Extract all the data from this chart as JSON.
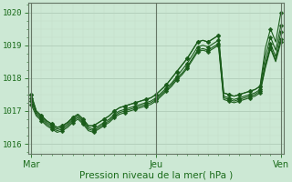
{
  "xlabel": "Pression niveau de la mer( hPa )",
  "bg_color": "#cce8d4",
  "grid_major_color": "#b0ccb8",
  "grid_minor_color": "#c4dcc8",
  "line_color": "#1a5c1a",
  "marker_color": "#1a5c1a",
  "xtick_labels": [
    "Mar",
    "Jeu",
    "Ven"
  ],
  "xtick_positions": [
    0,
    24,
    48
  ],
  "ytick_labels": [
    "1016",
    "1017",
    "1018",
    "1019",
    "1020"
  ],
  "ylim": [
    1015.7,
    1020.3
  ],
  "xlim": [
    -0.5,
    48.5
  ],
  "series": [
    [
      1017.5,
      1017.0,
      1016.85,
      1016.7,
      1016.6,
      1016.5,
      1016.55,
      1016.65,
      1016.8,
      1016.9,
      1016.75,
      1016.55,
      1016.55,
      1016.65,
      1016.75,
      1016.85,
      1017.0,
      1017.1,
      1017.15,
      1017.2,
      1017.25,
      1017.3,
      1017.35,
      1017.4,
      1017.5,
      1017.65,
      1017.8,
      1018.0,
      1018.2,
      1018.4,
      1018.6,
      1018.85,
      1019.1,
      1019.15,
      1019.1,
      1019.2,
      1019.3,
      1017.55,
      1017.5,
      1017.45,
      1017.5,
      1017.55,
      1017.6,
      1017.65,
      1017.75,
      1018.9,
      1019.5,
      1019.1,
      1020.0
    ],
    [
      1017.5,
      1017.0,
      1016.85,
      1016.7,
      1016.6,
      1016.5,
      1016.55,
      1016.65,
      1016.8,
      1016.9,
      1016.75,
      1016.55,
      1016.55,
      1016.65,
      1016.75,
      1016.85,
      1017.0,
      1017.1,
      1017.15,
      1017.2,
      1017.25,
      1017.3,
      1017.35,
      1017.4,
      1017.5,
      1017.65,
      1017.8,
      1018.0,
      1018.2,
      1018.4,
      1018.6,
      1018.85,
      1019.1,
      1019.15,
      1019.1,
      1019.2,
      1019.3,
      1017.55,
      1017.5,
      1017.45,
      1017.5,
      1017.55,
      1017.6,
      1017.65,
      1017.75,
      1018.65,
      1019.25,
      1018.85,
      1019.6
    ],
    [
      1017.4,
      1016.95,
      1016.8,
      1016.65,
      1016.55,
      1016.45,
      1016.5,
      1016.6,
      1016.75,
      1016.85,
      1016.7,
      1016.5,
      1016.45,
      1016.55,
      1016.65,
      1016.75,
      1016.9,
      1017.0,
      1017.05,
      1017.1,
      1017.15,
      1017.2,
      1017.25,
      1017.3,
      1017.4,
      1017.55,
      1017.7,
      1017.85,
      1018.05,
      1018.25,
      1018.45,
      1018.7,
      1018.95,
      1019.0,
      1018.95,
      1019.05,
      1019.15,
      1017.45,
      1017.4,
      1017.35,
      1017.4,
      1017.45,
      1017.5,
      1017.55,
      1017.65,
      1018.45,
      1019.05,
      1018.65,
      1019.4
    ],
    [
      1017.3,
      1016.9,
      1016.75,
      1016.6,
      1016.5,
      1016.4,
      1016.45,
      1016.55,
      1016.7,
      1016.8,
      1016.65,
      1016.45,
      1016.4,
      1016.5,
      1016.6,
      1016.7,
      1016.85,
      1016.95,
      1017.0,
      1017.05,
      1017.1,
      1017.15,
      1017.2,
      1017.25,
      1017.35,
      1017.5,
      1017.65,
      1017.8,
      1018.0,
      1018.15,
      1018.35,
      1018.6,
      1018.85,
      1018.9,
      1018.85,
      1018.95,
      1019.05,
      1017.4,
      1017.35,
      1017.3,
      1017.35,
      1017.4,
      1017.45,
      1017.5,
      1017.6,
      1018.35,
      1018.95,
      1018.55,
      1019.2
    ],
    [
      1017.2,
      1016.85,
      1016.7,
      1016.55,
      1016.45,
      1016.35,
      1016.4,
      1016.5,
      1016.65,
      1016.75,
      1016.6,
      1016.4,
      1016.35,
      1016.45,
      1016.55,
      1016.65,
      1016.8,
      1016.9,
      1016.95,
      1017.0,
      1017.05,
      1017.1,
      1017.15,
      1017.2,
      1017.3,
      1017.45,
      1017.6,
      1017.75,
      1017.95,
      1018.1,
      1018.3,
      1018.55,
      1018.8,
      1018.85,
      1018.8,
      1018.9,
      1019.0,
      1017.35,
      1017.3,
      1017.25,
      1017.3,
      1017.35,
      1017.4,
      1017.45,
      1017.55,
      1018.3,
      1018.9,
      1018.5,
      1019.1
    ]
  ],
  "marker_size": 2.5,
  "line_width": 0.8,
  "text_color": "#1a6b1a",
  "border_color": "#667766"
}
